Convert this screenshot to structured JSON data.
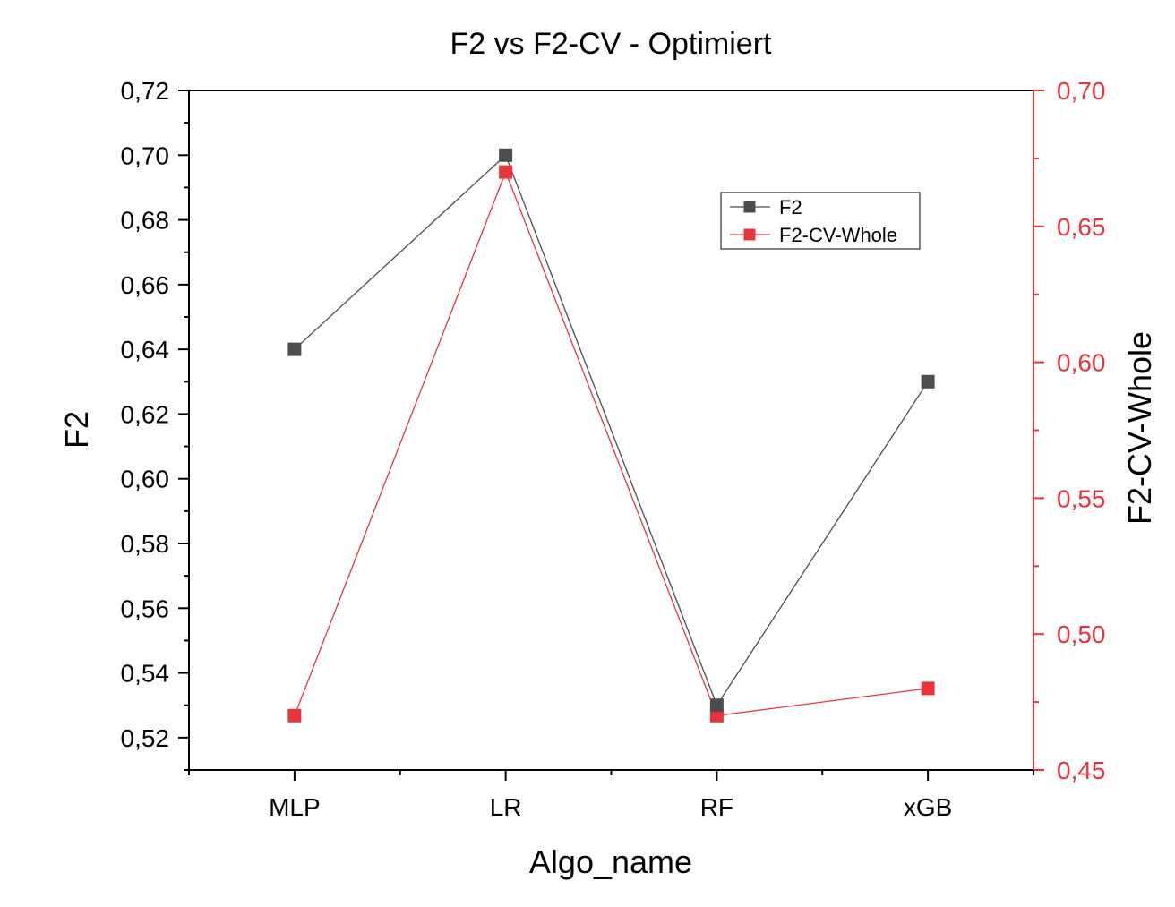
{
  "chart_data": {
    "type": "line",
    "title": "F2 vs F2-CV - Optimiert",
    "xlabel": "Algo_name",
    "ylabel": "F2",
    "y2label": "F2-CV-Whole",
    "categories": [
      "MLP",
      "LR",
      "RF",
      "xGB"
    ],
    "y_axis": {
      "min": 0.51,
      "max": 0.72,
      "major_ticks": [
        0.52,
        0.54,
        0.56,
        0.58,
        0.6,
        0.62,
        0.64,
        0.66,
        0.68,
        0.7,
        0.72
      ],
      "tick_labels": [
        "0,52",
        "0,54",
        "0,56",
        "0,58",
        "0,60",
        "0,62",
        "0,64",
        "0,66",
        "0,68",
        "0,70",
        "0,72"
      ]
    },
    "y2_axis": {
      "min": 0.45,
      "max": 0.7,
      "major_ticks": [
        0.45,
        0.5,
        0.55,
        0.6,
        0.65,
        0.7
      ],
      "tick_labels": [
        "0,45",
        "0,50",
        "0,55",
        "0,60",
        "0,65",
        "0,70"
      ],
      "color": "#e8343a"
    },
    "series": [
      {
        "name": "F2",
        "axis": "left",
        "color": "#4d4d4d",
        "values": [
          0.64,
          0.7,
          0.53,
          0.63
        ]
      },
      {
        "name": "F2-CV-Whole",
        "axis": "right",
        "color": "#e8343a",
        "values": [
          0.47,
          0.67,
          0.47,
          0.48
        ]
      }
    ],
    "grid": false,
    "legend_position": "top-right"
  }
}
